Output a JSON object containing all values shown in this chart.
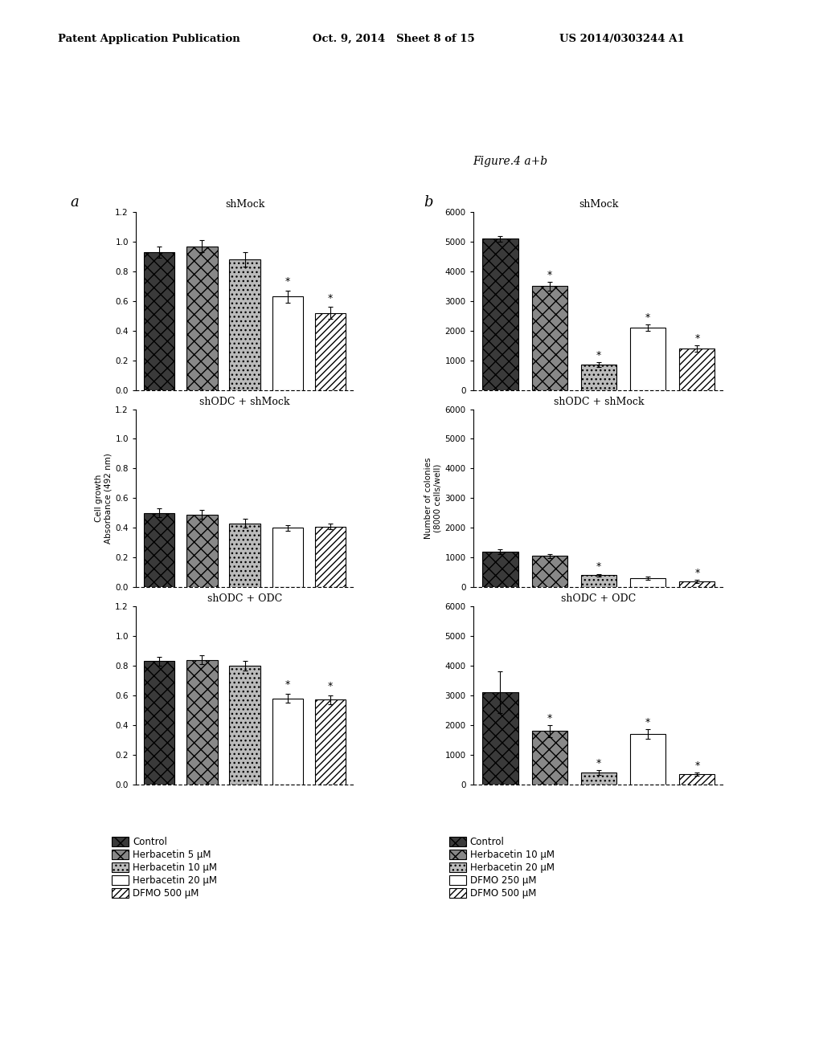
{
  "fig_title": "Figure.4 a+b",
  "header_left": "Patent Application Publication",
  "header_mid": "Oct. 9, 2014   Sheet 8 of 15",
  "header_right": "US 2014/0303244 A1",
  "panel_a_label": "a",
  "panel_b_label": "b",
  "panel_a_ylabel": "Cell growth\nAbsorbance (492 nm)",
  "panel_b_ylabel": "Number of colonies\n(8000 cells/well)",
  "panel_a_ylim": [
    0,
    1.2
  ],
  "panel_a_yticks": [
    0.0,
    0.2,
    0.4,
    0.6,
    0.8,
    1.0,
    1.2
  ],
  "panel_b_ylim": [
    0,
    6000
  ],
  "panel_b_yticks": [
    0,
    1000,
    2000,
    3000,
    4000,
    5000,
    6000
  ],
  "subplot_titles_a": [
    "shMock",
    "shODC + shMock",
    "shODC + ODC"
  ],
  "subplot_titles_b": [
    "shMock",
    "shODC + shMock",
    "shODC + ODC"
  ],
  "panel_a_data": [
    [
      0.93,
      0.97,
      0.88,
      0.63,
      0.52
    ],
    [
      0.5,
      0.49,
      0.43,
      0.4,
      0.41
    ],
    [
      0.83,
      0.84,
      0.8,
      0.58,
      0.57
    ]
  ],
  "panel_a_errors": [
    [
      0.04,
      0.04,
      0.05,
      0.04,
      0.04
    ],
    [
      0.03,
      0.03,
      0.03,
      0.02,
      0.02
    ],
    [
      0.03,
      0.03,
      0.03,
      0.03,
      0.03
    ]
  ],
  "panel_a_stars": [
    [
      false,
      false,
      false,
      true,
      true
    ],
    [
      false,
      false,
      false,
      false,
      false
    ],
    [
      false,
      false,
      false,
      true,
      true
    ]
  ],
  "panel_b_data": [
    [
      5100,
      3500,
      850,
      2100,
      1400
    ],
    [
      1200,
      1050,
      400,
      300,
      200
    ],
    [
      3100,
      1800,
      400,
      1700,
      350
    ]
  ],
  "panel_b_errors": [
    [
      100,
      150,
      80,
      100,
      100
    ],
    [
      80,
      80,
      50,
      50,
      50
    ],
    [
      700,
      200,
      80,
      150,
      50
    ]
  ],
  "panel_b_stars": [
    [
      false,
      true,
      true,
      true,
      true
    ],
    [
      false,
      false,
      true,
      false,
      true
    ],
    [
      false,
      true,
      true,
      true,
      true
    ]
  ],
  "legend_a_labels": [
    "Control",
    "Herbacetin 5 μM",
    "Herbacetin 10 μM",
    "Herbacetin 20 μM",
    "DFMO 500 μM"
  ],
  "legend_b_labels": [
    "Control",
    "Herbacetin 10 μM",
    "Herbacetin 20 μM",
    "DFMO 250 μM",
    "DFMO 500 μM"
  ]
}
